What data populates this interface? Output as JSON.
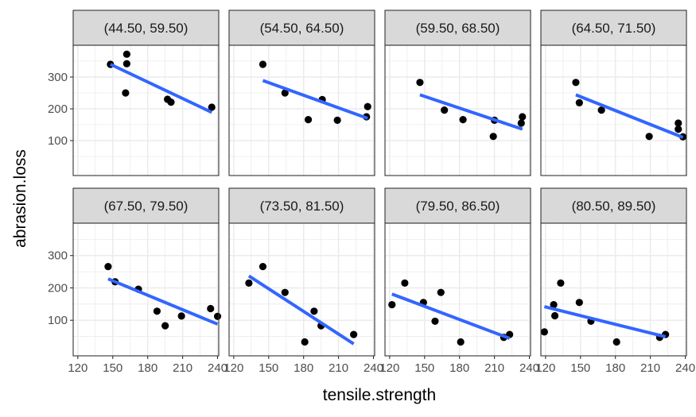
{
  "chart_data": {
    "type": "scatter",
    "xlabel": "tensile.strength",
    "ylabel": "abrasion.loss",
    "xlim": [
      116,
      241
    ],
    "ylim": [
      -10,
      400
    ],
    "x_ticks": [
      120,
      150,
      180,
      210,
      240
    ],
    "y_ticks": [
      100,
      200,
      300
    ],
    "grid": true,
    "legend": "none",
    "colors": {
      "points": "#000000",
      "fit_line": "#3366ff",
      "strip_fill": "#d9d9d9",
      "grid": "#ebebeb",
      "border": "#333333"
    },
    "panels": [
      {
        "label": "(44.50, 59.50)",
        "points": [
          [
            148,
            340
          ],
          [
            162,
            372
          ],
          [
            162,
            342
          ],
          [
            161,
            250
          ],
          [
            197,
            230
          ],
          [
            200,
            221
          ],
          [
            235,
            205
          ]
        ],
        "fit": [
          [
            148,
            340
          ],
          [
            235,
            189
          ]
        ]
      },
      {
        "label": "(54.50, 64.50)",
        "points": [
          [
            145,
            340
          ],
          [
            164,
            250
          ],
          [
            184,
            166
          ],
          [
            196,
            229
          ],
          [
            209,
            164
          ],
          [
            235,
            207
          ],
          [
            234,
            175
          ]
        ],
        "fit": [
          [
            145,
            289
          ],
          [
            235,
            170
          ]
        ]
      },
      {
        "label": "(59.50, 68.50)",
        "points": [
          [
            146,
            283
          ],
          [
            167,
            196
          ],
          [
            183,
            166
          ],
          [
            210,
            164
          ],
          [
            209,
            113
          ],
          [
            234,
            175
          ],
          [
            233,
            155
          ]
        ],
        "fit": [
          [
            146,
            244
          ],
          [
            234,
            136
          ]
        ]
      },
      {
        "label": "(64.50, 71.50)",
        "points": [
          [
            146,
            283
          ],
          [
            149,
            219
          ],
          [
            168,
            196
          ],
          [
            209,
            113
          ],
          [
            234,
            155
          ],
          [
            234,
            136
          ],
          [
            238,
            112
          ]
        ],
        "fit": [
          [
            146,
            244
          ],
          [
            238,
            110
          ]
        ]
      },
      {
        "label": "(67.50, 79.50)",
        "points": [
          [
            146,
            266
          ],
          [
            152,
            219
          ],
          [
            172,
            196
          ],
          [
            188,
            128
          ],
          [
            195,
            83
          ],
          [
            209,
            113
          ],
          [
            234,
            136
          ],
          [
            240,
            112
          ]
        ],
        "fit": [
          [
            146,
            228
          ],
          [
            240,
            88
          ]
        ]
      },
      {
        "label": "(73.50, 81.50)",
        "points": [
          [
            133,
            215
          ],
          [
            145,
            266
          ],
          [
            164,
            186
          ],
          [
            181,
            33
          ],
          [
            189,
            128
          ],
          [
            195,
            83
          ],
          [
            223,
            56
          ]
        ],
        "fit": [
          [
            133,
            237
          ],
          [
            223,
            27
          ]
        ]
      },
      {
        "label": "(79.50, 86.50)",
        "points": [
          [
            122,
            148
          ],
          [
            133,
            215
          ],
          [
            149,
            155
          ],
          [
            159,
            97
          ],
          [
            164,
            186
          ],
          [
            181,
            33
          ],
          [
            218,
            47
          ],
          [
            223,
            56
          ]
        ],
        "fit": [
          [
            122,
            181
          ],
          [
            223,
            44
          ]
        ]
      },
      {
        "label": "(80.50, 89.50)",
        "points": [
          [
            119,
            64
          ],
          [
            127,
            148
          ],
          [
            128,
            114
          ],
          [
            133,
            215
          ],
          [
            149,
            155
          ],
          [
            159,
            97
          ],
          [
            181,
            33
          ],
          [
            218,
            47
          ],
          [
            223,
            56
          ]
        ],
        "fit": [
          [
            119,
            142
          ],
          [
            223,
            49
          ]
        ]
      }
    ]
  }
}
